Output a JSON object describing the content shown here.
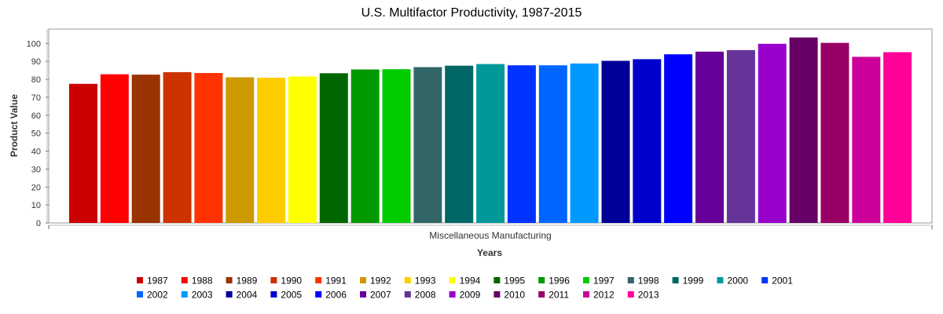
{
  "chart_data": {
    "type": "bar",
    "title": "U.S. Multifactor Productivity, 1987-2015",
    "xlabel": "Years",
    "ylabel": "Product Value",
    "categories": [
      "Miscellaneous Manufacturing"
    ],
    "ylim": [
      0,
      108
    ],
    "yticks": [
      0,
      10,
      20,
      30,
      40,
      50,
      60,
      70,
      80,
      90,
      100
    ],
    "grid": false,
    "legend_position": "bottom",
    "series": [
      {
        "name": "1987",
        "color": "#cc0000",
        "values": [
          77.5
        ]
      },
      {
        "name": "1988",
        "color": "#ff0000",
        "values": [
          82.8
        ]
      },
      {
        "name": "1989",
        "color": "#993300",
        "values": [
          82.6
        ]
      },
      {
        "name": "1990",
        "color": "#cc3300",
        "values": [
          84.0
        ]
      },
      {
        "name": "1991",
        "color": "#ff3300",
        "values": [
          83.5
        ]
      },
      {
        "name": "1992",
        "color": "#cc9900",
        "values": [
          81.1
        ]
      },
      {
        "name": "1993",
        "color": "#ffcc00",
        "values": [
          80.9
        ]
      },
      {
        "name": "1994",
        "color": "#ffff00",
        "values": [
          81.6
        ]
      },
      {
        "name": "1995",
        "color": "#006600",
        "values": [
          83.4
        ]
      },
      {
        "name": "1996",
        "color": "#009900",
        "values": [
          85.5
        ]
      },
      {
        "name": "1997",
        "color": "#00cc00",
        "values": [
          85.6
        ]
      },
      {
        "name": "1998",
        "color": "#336666",
        "values": [
          86.8
        ]
      },
      {
        "name": "1999",
        "color": "#006666",
        "values": [
          87.6
        ]
      },
      {
        "name": "2000",
        "color": "#009999",
        "values": [
          88.5
        ]
      },
      {
        "name": "2001",
        "color": "#0033ff",
        "values": [
          87.8
        ]
      },
      {
        "name": "2002",
        "color": "#0066ff",
        "values": [
          87.8
        ]
      },
      {
        "name": "2003",
        "color": "#0099ff",
        "values": [
          88.8
        ]
      },
      {
        "name": "2004",
        "color": "#000099",
        "values": [
          90.3
        ]
      },
      {
        "name": "2005",
        "color": "#0000cc",
        "values": [
          91.2
        ]
      },
      {
        "name": "2006",
        "color": "#0000ff",
        "values": [
          93.9
        ]
      },
      {
        "name": "2007",
        "color": "#660099",
        "values": [
          95.4
        ]
      },
      {
        "name": "2008",
        "color": "#663399",
        "values": [
          96.3
        ]
      },
      {
        "name": "2009",
        "color": "#9900cc",
        "values": [
          99.8
        ]
      },
      {
        "name": "2010",
        "color": "#660066",
        "values": [
          103.3
        ]
      },
      {
        "name": "2011",
        "color": "#990066",
        "values": [
          100.3
        ]
      },
      {
        "name": "2012",
        "color": "#cc0099",
        "values": [
          92.5
        ]
      },
      {
        "name": "2013",
        "color": "#ff0099",
        "values": [
          95.1
        ]
      }
    ]
  }
}
